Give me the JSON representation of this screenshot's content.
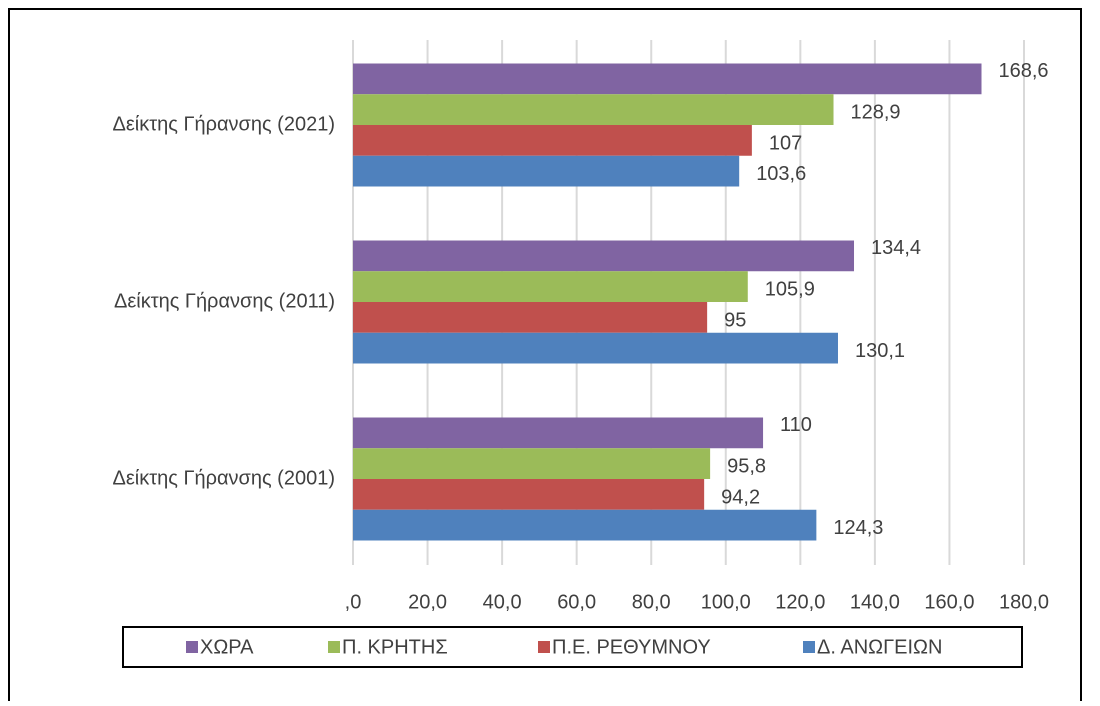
{
  "chart_data": {
    "type": "bar",
    "orientation": "horizontal",
    "categories": [
      "Δείκτης Γήρανσης (2001)",
      "Δείκτης Γήρανσης (2011)",
      "Δείκτης Γήρανσης (2021)"
    ],
    "series": [
      {
        "name": "ΧΩΡΑ",
        "color": "#8064a2",
        "values": [
          110,
          134.4,
          168.6
        ],
        "value_labels": [
          "110",
          "134,4",
          "168,6"
        ]
      },
      {
        "name": "Π. ΚΡΗΤΗΣ",
        "color": "#9bbb59",
        "values": [
          95.8,
          105.9,
          128.9
        ],
        "value_labels": [
          "95,8",
          "105,9",
          "128,9"
        ]
      },
      {
        "name": "Π.Ε. ΡΕΘΥΜΝΟΥ",
        "color": "#c0504d",
        "values": [
          94.2,
          95,
          107
        ],
        "value_labels": [
          "94,2",
          "95",
          "107"
        ]
      },
      {
        "name": "Δ. ΑΝΩΓΕΙΩΝ",
        "color": "#4f81bd",
        "values": [
          124.3,
          130.1,
          103.6
        ],
        "value_labels": [
          "124,3",
          "130,1",
          "103,6"
        ]
      }
    ],
    "xlim": [
      0,
      180
    ],
    "xticks": [
      {
        "value": 0,
        "label": ",0"
      },
      {
        "value": 20,
        "label": "20,0"
      },
      {
        "value": 40,
        "label": "40,0"
      },
      {
        "value": 60,
        "label": "60,0"
      },
      {
        "value": 80,
        "label": "80,0"
      },
      {
        "value": 100,
        "label": "100,0"
      },
      {
        "value": 120,
        "label": "120,0"
      },
      {
        "value": 140,
        "label": "140,0"
      },
      {
        "value": 160,
        "label": "160,0"
      },
      {
        "value": 180,
        "label": "180,0"
      }
    ],
    "grid": true,
    "legend": "bottom"
  }
}
